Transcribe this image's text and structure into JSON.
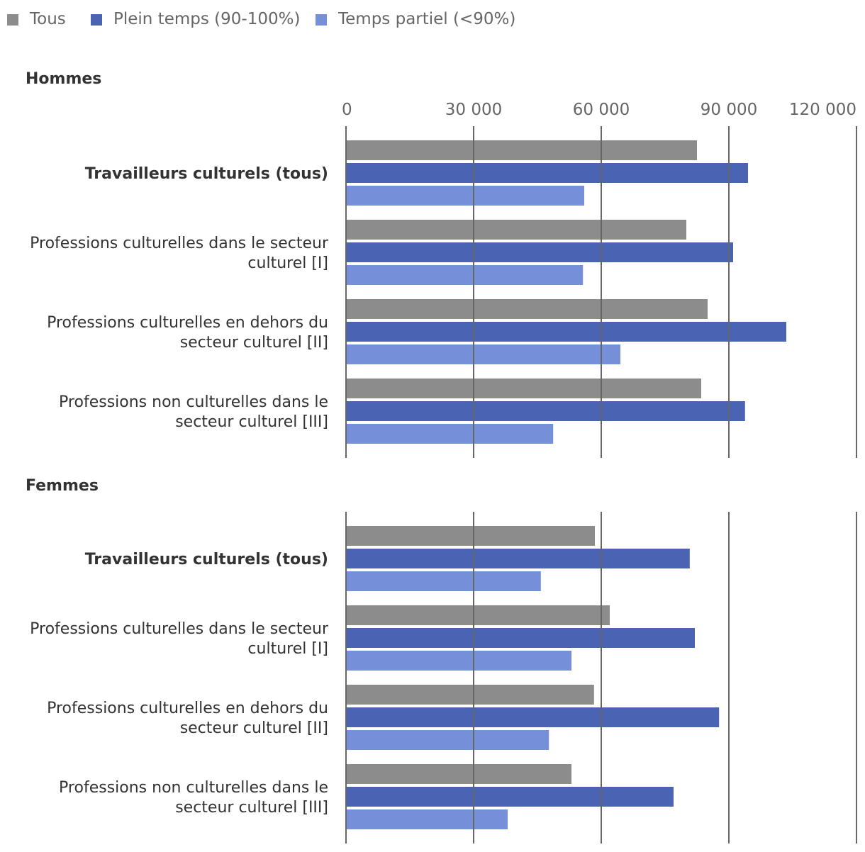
{
  "chart_data": {
    "type": "bar",
    "orientation": "horizontal",
    "legend": [
      {
        "name": "Tous",
        "color": "#8c8c8c"
      },
      {
        "name": "Plein temps (90-100%)",
        "color": "#4b63b3"
      },
      {
        "name": "Temps partiel (<90%)",
        "color": "#768fd9"
      }
    ],
    "legend_position": "top-left",
    "xlim": [
      0,
      120000
    ],
    "x_ticks": [
      0,
      30000,
      60000,
      90000,
      120000
    ],
    "x_tick_labels": [
      "0",
      "30 000",
      "60 000",
      "90 000",
      "120 000"
    ],
    "grid": true,
    "groups": [
      {
        "title": "Hommes",
        "categories": [
          {
            "label": [
              "Travailleurs culturels (tous)"
            ],
            "bold": true,
            "values": [
              82500,
              94500,
              56000
            ]
          },
          {
            "label": [
              "Professions culturelles dans le secteur",
              "culturel [I]"
            ],
            "bold": false,
            "values": [
              80000,
              91000,
              55700
            ]
          },
          {
            "label": [
              "Professions culturelles en dehors du",
              "secteur culturel [II]"
            ],
            "bold": false,
            "values": [
              85000,
              103500,
              64500
            ]
          },
          {
            "label": [
              "Professions non culturelles dans le",
              "secteur culturel [III]"
            ],
            "bold": false,
            "values": [
              83500,
              93800,
              48700
            ]
          }
        ]
      },
      {
        "title": "Femmes",
        "categories": [
          {
            "label": [
              "Travailleurs culturels (tous)"
            ],
            "bold": true,
            "values": [
              58500,
              80800,
              45800
            ]
          },
          {
            "label": [
              "Professions culturelles dans le secteur",
              "culturel [I]"
            ],
            "bold": false,
            "values": [
              62000,
              82000,
              53000
            ]
          },
          {
            "label": [
              "Professions culturelles en dehors du",
              "secteur culturel [II]"
            ],
            "bold": false,
            "values": [
              58300,
              87700,
              47700
            ]
          },
          {
            "label": [
              "Professions non culturelles dans le",
              "secteur culturel [III]"
            ],
            "bold": false,
            "values": [
              53000,
              77000,
              38000
            ]
          }
        ]
      }
    ]
  }
}
